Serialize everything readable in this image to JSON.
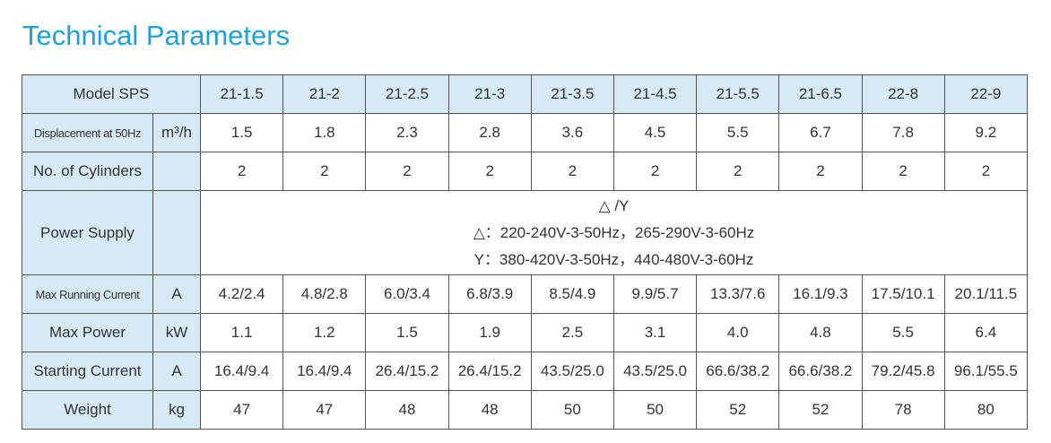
{
  "title": "Technical Parameters",
  "table": {
    "header": {
      "label": "Model SPS",
      "models": [
        "21-1.5",
        "21-2",
        "21-2.5",
        "21-3",
        "21-3.5",
        "21-4.5",
        "21-5.5",
        "21-6.5",
        "22-8",
        "22-9"
      ]
    },
    "rows": [
      {
        "label": "Displacement at 50Hz",
        "unit": "m³/h",
        "values": [
          "1.5",
          "1.8",
          "2.3",
          "2.8",
          "3.6",
          "4.5",
          "5.5",
          "6.7",
          "7.8",
          "9.2"
        ]
      },
      {
        "label": "No. of Cylinders",
        "values": [
          "2",
          "2",
          "2",
          "2",
          "2",
          "2",
          "2",
          "2",
          "2",
          "2"
        ]
      },
      {
        "label": "Power Supply",
        "lines": [
          "△ /Y",
          "△：220-240V-3-50Hz，265-290V-3-60Hz",
          "Y：380-420V-3-50Hz，440-480V-3-60Hz"
        ]
      },
      {
        "label": "Max Running Current",
        "unit": "A",
        "values": [
          "4.2/2.4",
          "4.8/2.8",
          "6.0/3.4",
          "6.8/3.9",
          "8.5/4.9",
          "9.9/5.7",
          "13.3/7.6",
          "16.1/9.3",
          "17.5/10.1",
          "20.1/11.5"
        ]
      },
      {
        "label": "Max Power",
        "unit": "kW",
        "values": [
          "1.1",
          "1.2",
          "1.5",
          "1.9",
          "2.5",
          "3.1",
          "4.0",
          "4.8",
          "5.5",
          "6.4"
        ]
      },
      {
        "label": "Starting Current",
        "unit": "A",
        "values": [
          "16.4/9.4",
          "16.4/9.4",
          "26.4/15.2",
          "26.4/15.2",
          "43.5/25.0",
          "43.5/25.0",
          "66.6/38.2",
          "66.6/38.2",
          "79.2/45.8",
          "96.1/55.5"
        ]
      },
      {
        "label": "Weight",
        "unit": "kg",
        "values": [
          "47",
          "47",
          "48",
          "48",
          "50",
          "50",
          "52",
          "52",
          "78",
          "80"
        ]
      }
    ]
  }
}
